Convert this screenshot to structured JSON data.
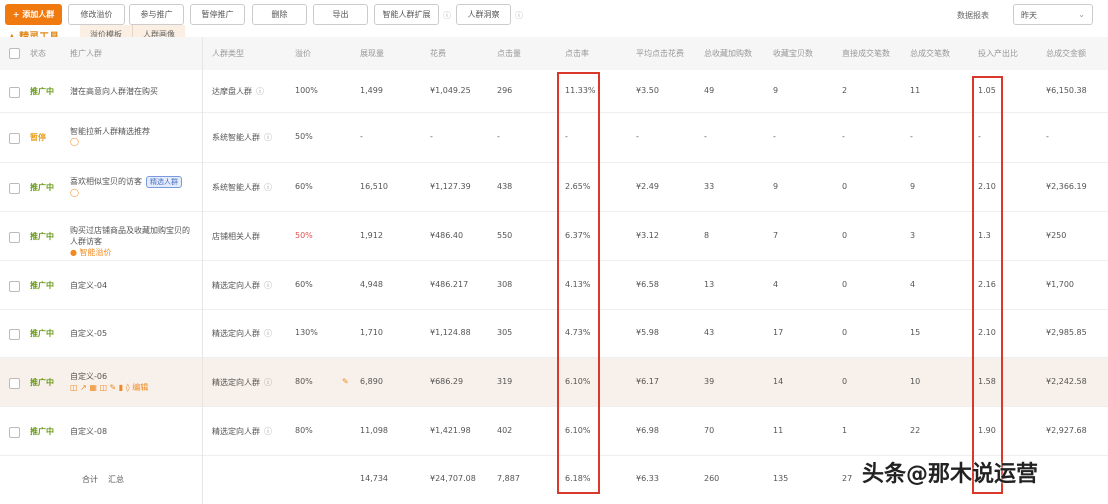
{
  "toolbar": {
    "add": "+ 添加人群",
    "buttons": [
      "修改溢价",
      "参与推广",
      "暂停推广",
      "删除",
      "导出",
      "智能人群扩展",
      "人群洞察"
    ]
  },
  "logo": "精灵工具",
  "tabs": [
    "溢价模板",
    "人群画像"
  ],
  "top_right": {
    "label": "数据报表",
    "select": "昨天"
  },
  "columns": [
    "状态",
    "推广人群",
    "人群类型",
    "溢价",
    "展现量",
    "花费",
    "点击量",
    "点击率",
    "平均点击花费",
    "总收藏加购数",
    "收藏宝贝数",
    "直接成交笔数",
    "总成交笔数",
    "投入产出比",
    "总成交金额"
  ],
  "rows": [
    {
      "status": "推广中",
      "name": "潜在高意向人群潜在购买",
      "type": "达摩盘人群",
      "premium": "100%",
      "cells": [
        "1,499",
        "¥1,049.25",
        "296",
        "11.33%",
        "¥3.50",
        "49",
        "9",
        "2",
        "11",
        "1.05",
        "¥6,150.38"
      ]
    },
    {
      "status": "暂停",
      "name": "智能拉新人群精选推荐",
      "type": "系统智能人群",
      "premium": "50%",
      "cells": [
        "-",
        "-",
        "-",
        "-",
        "-",
        "-",
        "-",
        "-",
        "-",
        "-",
        "-"
      ]
    },
    {
      "status": "推广中",
      "name": "喜欢相似宝贝的访客",
      "tag": "精选人群",
      "type": "系统智能人群",
      "premium": "60%",
      "cells": [
        "16,510",
        "¥1,127.39",
        "438",
        "2.65%",
        "¥2.49",
        "33",
        "9",
        "0",
        "9",
        "2.10",
        "¥2,366.19"
      ]
    },
    {
      "status": "推广中",
      "name": "购买过店铺商品及收藏加购宝贝的人群访客",
      "sub": "● 智能溢价",
      "type": "店铺相关人群",
      "premium": "50%",
      "premium_red": true,
      "cells": [
        "1,912",
        "¥486.40",
        "550",
        "6.37%",
        "¥3.12",
        "8",
        "7",
        "0",
        "3",
        "1.3",
        "¥250"
      ]
    },
    {
      "status": "推广中",
      "name": "自定义-04",
      "type": "精选定向人群",
      "premium": "60%",
      "cells": [
        "4,948",
        "¥486.217",
        "308",
        "4.13%",
        "¥6.58",
        "13",
        "4",
        "0",
        "4",
        "2.16",
        "¥1,700"
      ]
    },
    {
      "status": "推广中",
      "name": "自定义-05",
      "type": "精选定向人群",
      "premium": "130%",
      "cells": [
        "1,710",
        "¥1,124.88",
        "305",
        "4.73%",
        "¥5.98",
        "43",
        "17",
        "0",
        "15",
        "2.10",
        "¥2,985.85"
      ]
    },
    {
      "status": "推广中",
      "name": "自定义-06",
      "type": "精选定向人群",
      "premium": "80%",
      "cells": [
        "6,890",
        "¥686.29",
        "319",
        "6.10%",
        "¥6.17",
        "39",
        "14",
        "0",
        "10",
        "1.58",
        "¥2,242.58"
      ]
    },
    {
      "status": "推广中",
      "name": "自定义-08",
      "type": "精选定向人群",
      "premium": "80%",
      "cells": [
        "11,098",
        "¥1,421.98",
        "402",
        "6.10%",
        "¥6.98",
        "70",
        "11",
        "1",
        "22",
        "1.90",
        "¥2,927.68"
      ]
    }
  ],
  "footer": {
    "label": "合计",
    "sub": "汇总",
    "cells": [
      "14,734",
      "¥24,707.08",
      "7,887",
      "6.18%",
      "¥6.33",
      "260",
      "135",
      "27",
      "",
      "",
      ""
    ]
  },
  "watermark": "头条@那木说运营",
  "colors": {
    "accent": "#f07a10",
    "highlight": "#d8392b"
  }
}
